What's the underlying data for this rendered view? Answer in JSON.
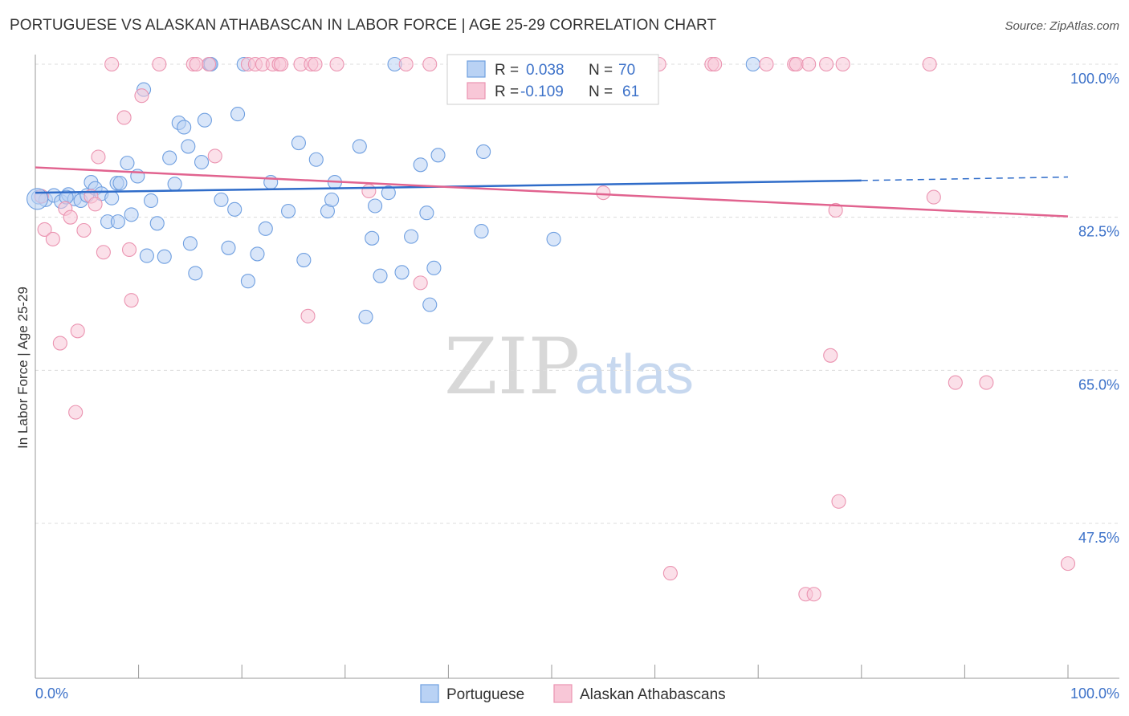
{
  "title": "PORTUGUESE VS ALASKAN ATHABASCAN IN LABOR FORCE | AGE 25-29 CORRELATION CHART",
  "source": "Source: ZipAtlas.com",
  "watermark": {
    "zip": "ZIP",
    "atlas": "atlas"
  },
  "chart_data": {
    "type": "scatter",
    "ylabel": "In Labor Force | Age 25-29",
    "xlim": [
      0,
      100
    ],
    "ylim": [
      33,
      102.5
    ],
    "x_tick_labels": [
      "0.0%",
      "100.0%"
    ],
    "y_ticks": [
      {
        "value": 100,
        "label": "100.0%"
      },
      {
        "value": 82.5,
        "label": "82.5%"
      },
      {
        "value": 65,
        "label": "65.0%"
      },
      {
        "value": 47.5,
        "label": "47.5%"
      }
    ],
    "grid": true,
    "legend": {
      "placement": "top-center",
      "rows": [
        {
          "r_label": "R =",
          "r_value": "0.038",
          "n_label": "N =",
          "n_value": "70"
        },
        {
          "r_label": "R =",
          "r_value": "-0.109",
          "n_label": "N =",
          "n_value": "61"
        }
      ]
    },
    "series": [
      {
        "name": "Portuguese",
        "color": "#6f9fe0",
        "fill": "#b9d2f4",
        "line_color": "#2f6cc9",
        "trend": {
          "x0": 0,
          "y0": 85.3,
          "x1": 80,
          "y1": 86.7,
          "dash_to": 100,
          "dash_y": 87.1
        },
        "points": [
          [
            0.3,
            84.8
          ],
          [
            1.0,
            84.5
          ],
          [
            1.8,
            85.0
          ],
          [
            2.5,
            84.3
          ],
          [
            3.2,
            85.1
          ],
          [
            3.8,
            84.6
          ],
          [
            4.4,
            84.4
          ],
          [
            5.0,
            85.0
          ],
          [
            5.4,
            86.5
          ],
          [
            5.8,
            85.8
          ],
          [
            6.4,
            85.2
          ],
          [
            7.0,
            82.0
          ],
          [
            7.4,
            84.7
          ],
          [
            7.9,
            86.4
          ],
          [
            8.2,
            86.4
          ],
          [
            8.9,
            88.7
          ],
          [
            9.3,
            82.8
          ],
          [
            9.9,
            87.2
          ],
          [
            10.5,
            97.1
          ],
          [
            10.8,
            78.1
          ],
          [
            11.2,
            84.4
          ],
          [
            11.8,
            81.8
          ],
          [
            12.5,
            78.0
          ],
          [
            13.0,
            89.3
          ],
          [
            13.5,
            86.3
          ],
          [
            13.9,
            93.3
          ],
          [
            14.4,
            92.8
          ],
          [
            14.8,
            90.6
          ],
          [
            15.5,
            76.1
          ],
          [
            16.1,
            88.8
          ],
          [
            16.4,
            93.6
          ],
          [
            16.9,
            100.0
          ],
          [
            17.0,
            100.0
          ],
          [
            18.0,
            84.5
          ],
          [
            18.7,
            79.0
          ],
          [
            19.3,
            83.4
          ],
          [
            19.6,
            94.3
          ],
          [
            20.2,
            100.0
          ],
          [
            20.6,
            75.2
          ],
          [
            21.5,
            78.3
          ],
          [
            22.3,
            81.2
          ],
          [
            22.8,
            86.5
          ],
          [
            24.5,
            83.2
          ],
          [
            25.5,
            91.0
          ],
          [
            26.0,
            77.6
          ],
          [
            27.2,
            89.1
          ],
          [
            28.3,
            83.2
          ],
          [
            28.7,
            84.5
          ],
          [
            29.0,
            86.5
          ],
          [
            31.4,
            90.6
          ],
          [
            32.0,
            71.1
          ],
          [
            32.6,
            80.1
          ],
          [
            32.9,
            83.8
          ],
          [
            33.4,
            75.8
          ],
          [
            34.2,
            85.3
          ],
          [
            34.8,
            100.0
          ],
          [
            35.5,
            76.2
          ],
          [
            36.4,
            80.3
          ],
          [
            37.3,
            88.5
          ],
          [
            37.9,
            83.0
          ],
          [
            38.2,
            72.5
          ],
          [
            38.6,
            76.7
          ],
          [
            39.0,
            89.6
          ],
          [
            43.2,
            80.9
          ],
          [
            43.4,
            90.0
          ],
          [
            50.2,
            80.0
          ],
          [
            69.5,
            100.0
          ],
          [
            8.0,
            82.0
          ],
          [
            3.0,
            84.8
          ],
          [
            15.0,
            79.5
          ]
        ]
      },
      {
        "name": "Alaskan Athabascans",
        "color": "#eb94b1",
        "fill": "#f8c7d7",
        "line_color": "#e1638f",
        "trend": {
          "x0": 0,
          "y0": 88.2,
          "x1": 100,
          "y1": 82.6
        },
        "points": [
          [
            0.6,
            84.9
          ],
          [
            0.9,
            81.1
          ],
          [
            1.7,
            80.0
          ],
          [
            2.4,
            68.1
          ],
          [
            2.9,
            83.5
          ],
          [
            3.4,
            82.5
          ],
          [
            3.9,
            60.2
          ],
          [
            4.1,
            69.5
          ],
          [
            4.7,
            81.0
          ],
          [
            5.4,
            84.9
          ],
          [
            5.8,
            84.0
          ],
          [
            6.1,
            89.4
          ],
          [
            6.6,
            78.5
          ],
          [
            8.6,
            93.9
          ],
          [
            9.1,
            78.8
          ],
          [
            9.3,
            73.0
          ],
          [
            10.3,
            96.4
          ],
          [
            7.4,
            100.0
          ],
          [
            12.0,
            100.0
          ],
          [
            15.3,
            100.0
          ],
          [
            15.6,
            100.0
          ],
          [
            16.8,
            100.0
          ],
          [
            17.4,
            89.5
          ],
          [
            20.6,
            100.0
          ],
          [
            21.3,
            100.0
          ],
          [
            22.0,
            100.0
          ],
          [
            23.0,
            100.0
          ],
          [
            23.6,
            100.0
          ],
          [
            23.8,
            100.0
          ],
          [
            25.7,
            100.0
          ],
          [
            26.4,
            71.2
          ],
          [
            26.7,
            100.0
          ],
          [
            27.1,
            100.0
          ],
          [
            29.2,
            100.0
          ],
          [
            32.3,
            85.5
          ],
          [
            35.9,
            100.0
          ],
          [
            37.3,
            75.0
          ],
          [
            38.2,
            100.0
          ],
          [
            48.1,
            100.0
          ],
          [
            51.2,
            100.0
          ],
          [
            55.0,
            85.3
          ],
          [
            60.4,
            100.0
          ],
          [
            61.5,
            41.8
          ],
          [
            65.5,
            100.0
          ],
          [
            65.8,
            100.0
          ],
          [
            70.8,
            100.0
          ],
          [
            73.5,
            100.0
          ],
          [
            73.7,
            100.0
          ],
          [
            74.6,
            39.4
          ],
          [
            74.9,
            100.0
          ],
          [
            75.4,
            39.4
          ],
          [
            76.6,
            100.0
          ],
          [
            78.2,
            100.0
          ],
          [
            77.0,
            66.7
          ],
          [
            77.5,
            83.3
          ],
          [
            77.8,
            50.0
          ],
          [
            86.6,
            100.0
          ],
          [
            87.0,
            84.8
          ],
          [
            89.1,
            63.6
          ],
          [
            92.1,
            63.6
          ],
          [
            100.0,
            42.9
          ]
        ]
      }
    ]
  }
}
